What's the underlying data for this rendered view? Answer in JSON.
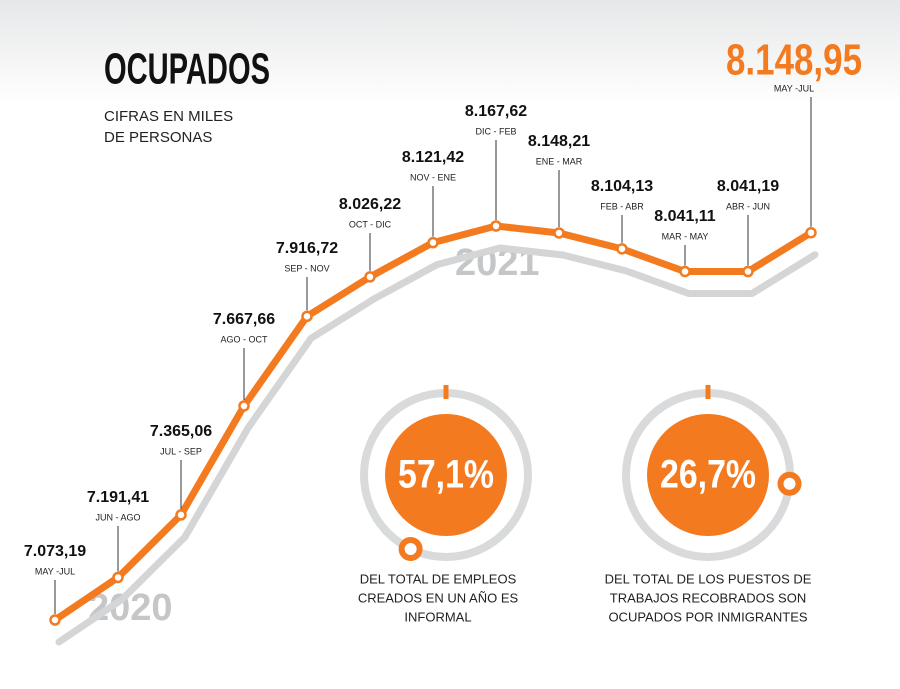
{
  "chart_data": {
    "type": "line",
    "title": "OCUPADOS",
    "subtitle": [
      "CIFRAS EN MILES",
      "DE PERSONAS"
    ],
    "categories": [
      "MAY -JUL",
      "JUN - AGO",
      "JUL - SEP",
      "AGO - OCT",
      "SEP - NOV",
      "OCT - DIC",
      "NOV - ENE",
      "DIC - FEB",
      "ENE - MAR",
      "FEB - ABR",
      "MAR - MAY",
      "ABR - JUN",
      "MAY -JUL"
    ],
    "values": [
      7073.19,
      7191.41,
      7365.06,
      7667.66,
      7916.72,
      8026.22,
      8121.42,
      8167.62,
      8148.21,
      8104.13,
      8041.11,
      8041.19,
      8148.95
    ],
    "value_labels": [
      "7.073,19",
      "7.191,41",
      "7.365,06",
      "7.667,66",
      "7.916,72",
      "8.026,22",
      "8.121,42",
      "8.167,62",
      "8.148,21",
      "8.104,13",
      "8.041,11",
      "8.041,19",
      "8.148,95"
    ],
    "color": "#f47a20",
    "annotations": [
      "2020",
      "2021"
    ]
  },
  "highlights": [
    {
      "value": 57.1,
      "value_label": "57,1%",
      "text": [
        "DEL TOTAL DE EMPLEOS",
        "CREADOS EN UN AÑO ES",
        "INFORMAL"
      ]
    },
    {
      "value": 26.7,
      "value_label": "26,7%",
      "text": [
        "DEL TOTAL DE LOS PUESTOS DE",
        "TRABAJOS RECOBRADOS SON",
        "OCUPADOS POR INMIGRANTES"
      ]
    }
  ]
}
